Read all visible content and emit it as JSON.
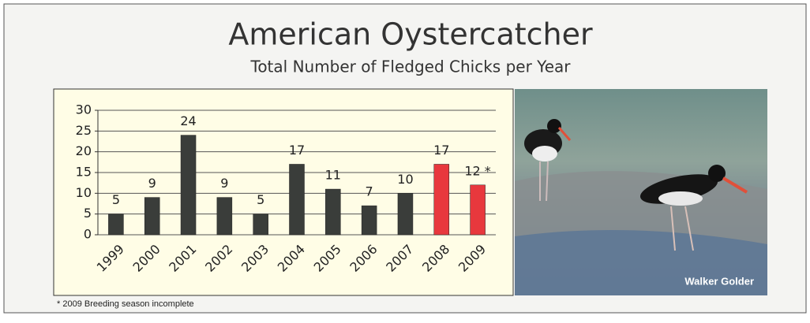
{
  "chart_data": {
    "type": "bar",
    "title": "American Oystercatcher",
    "subtitle": "Total Number of Fledged Chicks per Year",
    "categories": [
      "1999",
      "2000",
      "2001",
      "2002",
      "2003",
      "2004",
      "2005",
      "2006",
      "2007",
      "2008",
      "2009"
    ],
    "values": [
      5,
      9,
      24,
      9,
      5,
      17,
      11,
      7,
      10,
      17,
      12
    ],
    "value_labels": [
      "5",
      "9",
      "24",
      "9",
      "5",
      "17",
      "11",
      "7",
      "10",
      "17",
      "12 *"
    ],
    "colors": [
      "#3a3d3a",
      "#3a3d3a",
      "#3a3d3a",
      "#3a3d3a",
      "#3a3d3a",
      "#3a3d3a",
      "#3a3d3a",
      "#3a3d3a",
      "#3a3d3a",
      "#e8383d",
      "#e8383d"
    ],
    "ylim": [
      0,
      30
    ],
    "yticks": [
      0,
      5,
      10,
      15,
      20,
      25,
      30
    ],
    "grid": true,
    "footnote": "* 2009 Breeding season incomplete",
    "photo_credit": "Walker Golder"
  }
}
